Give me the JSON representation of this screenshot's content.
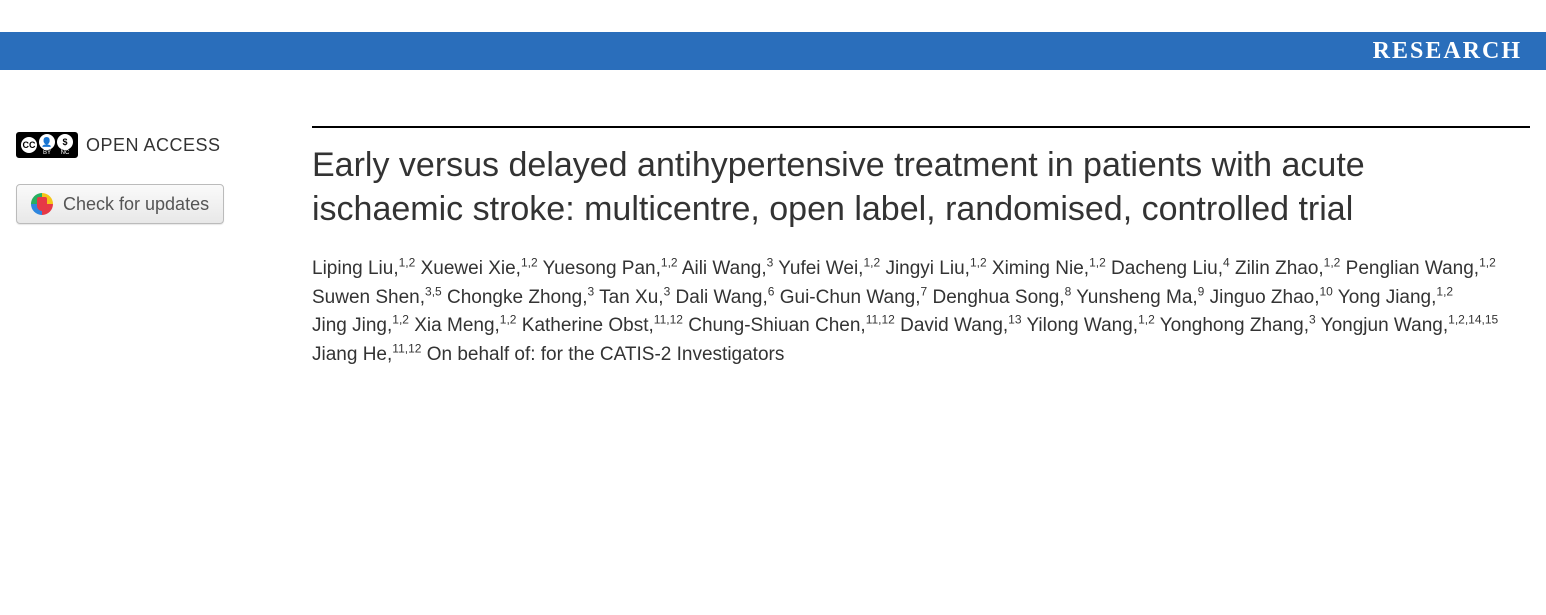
{
  "header": {
    "section_label": "RESEARCH",
    "bar_color": "#2a6ebb",
    "text_color": "#ffffff"
  },
  "sidebar": {
    "open_access_label": "OPEN ACCESS",
    "cc_symbols": [
      "CC",
      "BY",
      "NC"
    ],
    "updates_button_label": "Check for updates"
  },
  "article": {
    "title": "Early versus delayed antihypertensive treatment in patients with acute ischaemic stroke: multicentre, open label, randomised, controlled trial",
    "authors": [
      {
        "name": "Liping Liu",
        "affil": "1,2"
      },
      {
        "name": "Xuewei Xie",
        "affil": "1,2"
      },
      {
        "name": "Yuesong Pan",
        "affil": "1,2"
      },
      {
        "name": "Aili Wang",
        "affil": "3"
      },
      {
        "name": "Yufei Wei",
        "affil": "1,2"
      },
      {
        "name": "Jingyi Liu",
        "affil": "1,2"
      },
      {
        "name": "Ximing Nie",
        "affil": "1,2"
      },
      {
        "name": "Dacheng Liu",
        "affil": "4"
      },
      {
        "name": "Zilin Zhao",
        "affil": "1,2"
      },
      {
        "name": "Penglian Wang",
        "affil": "1,2"
      },
      {
        "name": "Suwen Shen",
        "affil": "3,5"
      },
      {
        "name": "Chongke Zhong",
        "affil": "3"
      },
      {
        "name": "Tan Xu",
        "affil": "3"
      },
      {
        "name": "Dali Wang",
        "affil": "6"
      },
      {
        "name": "Gui-Chun Wang",
        "affil": "7"
      },
      {
        "name": "Denghua Song",
        "affil": "8"
      },
      {
        "name": "Yunsheng Ma",
        "affil": "9"
      },
      {
        "name": "Jinguo Zhao",
        "affil": "10"
      },
      {
        "name": "Yong Jiang",
        "affil": "1,2"
      },
      {
        "name": "Jing Jing",
        "affil": "1,2"
      },
      {
        "name": "Xia Meng",
        "affil": "1,2"
      },
      {
        "name": "Katherine Obst",
        "affil": "11,12"
      },
      {
        "name": "Chung-Shiuan Chen",
        "affil": "11,12"
      },
      {
        "name": "David Wang",
        "affil": "13"
      },
      {
        "name": "Yilong Wang",
        "affil": "1,2"
      },
      {
        "name": "Yonghong Zhang",
        "affil": "3"
      },
      {
        "name": "Yongjun Wang",
        "affil": "1,2,14,15"
      },
      {
        "name": "Jiang He",
        "affil": "11,12"
      }
    ],
    "collaboration_suffix": "On behalf of: for the CATIS-2 Investigators"
  },
  "colors": {
    "text": "#333333",
    "divider": "#000000",
    "background": "#ffffff"
  }
}
